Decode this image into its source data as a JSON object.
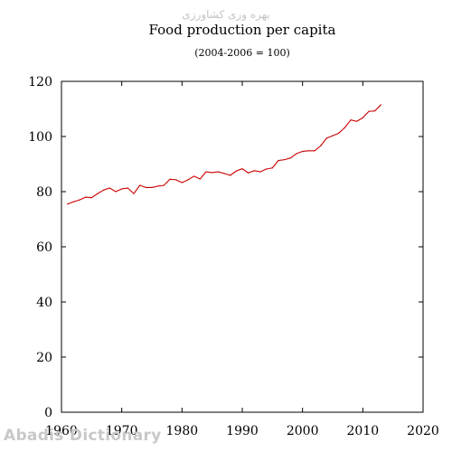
{
  "watermarks": {
    "top": "بهره وری کشاورزی",
    "bottom": "Abadis Dictionary"
  },
  "chart_data": {
    "type": "line",
    "title": "Food production per capita",
    "subtitle": "(2004-2006 = 100)",
    "xlabel": "",
    "ylabel": "",
    "xlim": [
      1960,
      2020
    ],
    "ylim": [
      0,
      120
    ],
    "x_ticks": [
      1960,
      1970,
      1980,
      1990,
      2000,
      2010,
      2020
    ],
    "y_ticks": [
      0,
      20,
      40,
      60,
      80,
      100,
      120
    ],
    "grid": false,
    "legend": "none",
    "series": [
      {
        "color": "#cc0000",
        "x": [
          1961,
          1962,
          1963,
          1964,
          1965,
          1966,
          1967,
          1968,
          1969,
          1970,
          1971,
          1972,
          1973,
          1974,
          1975,
          1976,
          1977,
          1978,
          1979,
          1980,
          1981,
          1982,
          1983,
          1984,
          1985,
          1986,
          1987,
          1988,
          1989,
          1990,
          1991,
          1992,
          1993,
          1994,
          1995,
          1996,
          1997,
          1998,
          1999,
          2000,
          2001,
          2002,
          2003,
          2004,
          2005,
          2006,
          2007,
          2008,
          2009,
          2010,
          2011,
          2012,
          2013
        ],
        "y": [
          75.5,
          76.3,
          77.0,
          78.0,
          77.8,
          79.3,
          80.6,
          81.3,
          80.0,
          81.0,
          81.3,
          79.3,
          82.3,
          81.5,
          81.5,
          82.0,
          82.3,
          84.5,
          84.3,
          83.3,
          84.3,
          85.6,
          84.6,
          87.2,
          86.9,
          87.2,
          86.6,
          85.9,
          87.5,
          88.3,
          86.8,
          87.6,
          87.2,
          88.2,
          88.6,
          91.3,
          91.6,
          92.2,
          93.8,
          94.6,
          94.8,
          94.8,
          96.6,
          99.4,
          100.3,
          101.2,
          103.2,
          106.0,
          105.5,
          106.8,
          109.1,
          109.3,
          111.5
        ]
      }
    ]
  }
}
